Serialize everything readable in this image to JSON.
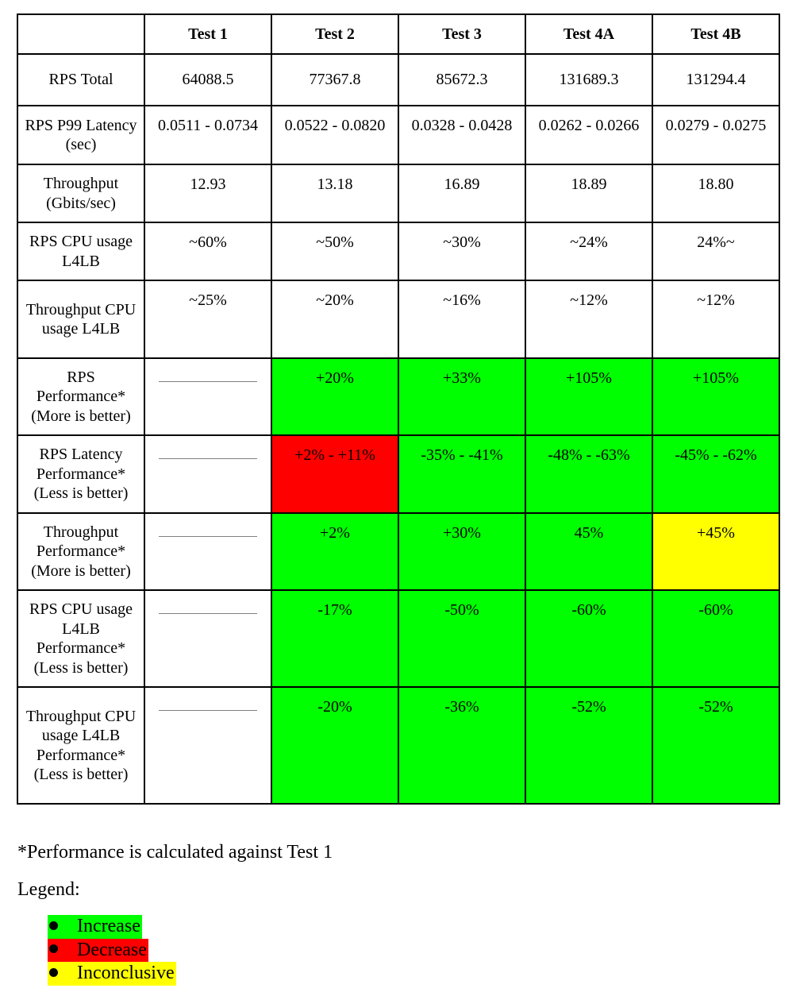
{
  "table": {
    "headers": [
      "",
      "Test 1",
      "Test 2",
      "Test 3",
      "Test 4A",
      "Test 4B"
    ],
    "rows": [
      {
        "label": "RPS Total",
        "cells": [
          "64088.5",
          "77367.8",
          "85672.3",
          "131689.3",
          "131294.4"
        ],
        "colors": [
          "",
          "",
          "",
          "",
          ""
        ]
      },
      {
        "label": "RPS P99 Latency (sec)",
        "cells": [
          "0.0511 - 0.0734",
          "0.0522 - 0.0820",
          "0.0328 - 0.0428",
          "0.0262 - 0.0266",
          "0.0279 - 0.0275"
        ],
        "colors": [
          "",
          "",
          "",
          "",
          ""
        ]
      },
      {
        "label": "Throughput (Gbits/sec)",
        "cells": [
          "12.93",
          "13.18",
          "16.89",
          "18.89",
          "18.80"
        ],
        "colors": [
          "",
          "",
          "",
          "",
          ""
        ]
      },
      {
        "label": "RPS CPU usage L4LB",
        "cells": [
          "~60%",
          "~50%",
          "~30%",
          "~24%",
          "24%~"
        ],
        "colors": [
          "",
          "",
          "",
          "",
          ""
        ]
      },
      {
        "label": "Throughput CPU usage L4LB",
        "cells": [
          "~25%",
          "~20%",
          "~16%",
          "~12%",
          "~12%"
        ],
        "colors": [
          "",
          "",
          "",
          "",
          ""
        ]
      },
      {
        "label": "RPS Performance* (More is better)",
        "cells": [
          "",
          "+20%",
          "+33%",
          "+105%",
          "+105%"
        ],
        "colors": [
          "",
          "#00ff00",
          "#00ff00",
          "#00ff00",
          "#00ff00"
        ]
      },
      {
        "label": "RPS Latency Performance* (Less is better)",
        "cells": [
          "",
          "+2% - +11%",
          "-35% - -41%",
          "-48% - -63%",
          "-45% - -62%"
        ],
        "colors": [
          "",
          "#ff0000",
          "#00ff00",
          "#00ff00",
          "#00ff00"
        ]
      },
      {
        "label": "Throughput Performance* (More is better)",
        "cells": [
          "",
          "+2%",
          "+30%",
          "45%",
          "+45%"
        ],
        "colors": [
          "",
          "#00ff00",
          "#00ff00",
          "#00ff00",
          "#ffff00"
        ]
      },
      {
        "label": "RPS CPU usage L4LB Performance* (Less is better)",
        "cells": [
          "",
          "-17%",
          "-50%",
          "-60%",
          "-60%"
        ],
        "colors": [
          "",
          "#00ff00",
          "#00ff00",
          "#00ff00",
          "#00ff00"
        ]
      },
      {
        "label": "Throughput CPU usage L4LB Performance* (Less is better)",
        "cells": [
          "",
          "-20%",
          "-36%",
          "-52%",
          "-52%"
        ],
        "colors": [
          "",
          "#00ff00",
          "#00ff00",
          "#00ff00",
          "#00ff00"
        ]
      }
    ]
  },
  "footnote": "*Performance is calculated against Test 1",
  "legend": {
    "title": "Legend:",
    "items": [
      {
        "label": "Increase",
        "color": "#00ff00"
      },
      {
        "label": "Decrease",
        "color": "#ff0000"
      },
      {
        "label": "Inconclusive",
        "color": "#ffff00"
      }
    ]
  }
}
